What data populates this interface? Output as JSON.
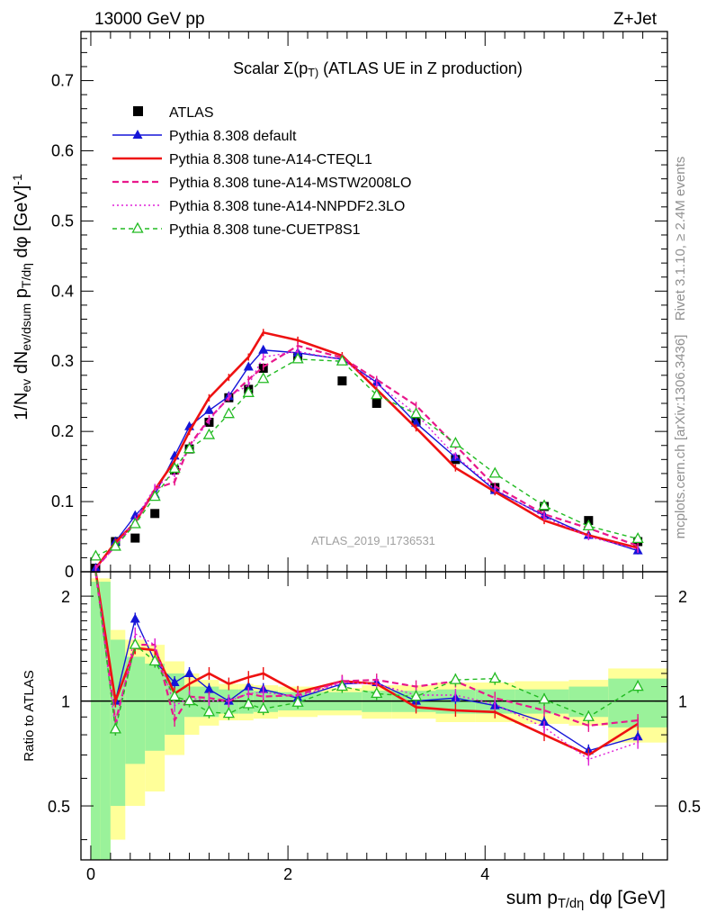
{
  "header": {
    "left": "13000 GeV pp",
    "right": "Z+Jet"
  },
  "side_labels": {
    "rivet": "Rivet 3.1.10, ≥ 2.4M events",
    "mcplots": "mcplots.cern.ch [arXiv:1306.3436]"
  },
  "watermark": "ATLAS_2019_I1736531",
  "chart_data": [
    {
      "type": "line",
      "title": "Scalar Σ(p_T) (ATLAS UE in Z production)",
      "ylabel": "1/N_ev dN_ev/dsum p_T/dη dφ [GeV]^-1",
      "ylim": [
        0,
        0.77
      ],
      "xlim": [
        -0.1,
        5.85
      ],
      "yticks": [
        0,
        0.1,
        0.2,
        0.3,
        0.4,
        0.5,
        0.6,
        0.7
      ],
      "ytick_labels": [
        "0",
        "0.1",
        "0.2",
        "0.3",
        "0.4",
        "0.5",
        "0.6",
        "0.7"
      ],
      "legend_position": "top-left",
      "x": [
        0.05,
        0.25,
        0.45,
        0.65,
        0.85,
        1.0,
        1.2,
        1.4,
        1.6,
        1.75,
        2.1,
        2.55,
        2.9,
        3.3,
        3.7,
        4.1,
        4.6,
        5.05,
        5.55
      ],
      "series": [
        {
          "name": "ATLAS",
          "color": "#000000",
          "style": "data",
          "values": [
            0.005,
            0.043,
            0.048,
            0.083,
            0.145,
            0.175,
            0.213,
            0.248,
            0.26,
            0.29,
            0.305,
            0.272,
            0.24,
            0.215,
            0.16,
            0.12,
            0.093,
            0.073,
            0.043
          ]
        },
        {
          "name": "Pythia 8.308 default",
          "color": "#1515d8",
          "style": "solid-marker",
          "values": [
            0.005,
            0.043,
            0.08,
            0.11,
            0.165,
            0.207,
            0.23,
            0.25,
            0.292,
            0.316,
            0.312,
            0.303,
            0.27,
            0.212,
            0.163,
            0.116,
            0.08,
            0.052,
            0.03
          ]
        },
        {
          "name": "Pythia 8.308 tune-A14-CTEQL1",
          "color": "#ee1111",
          "style": "solid-thick",
          "values": [
            0.005,
            0.042,
            0.07,
            0.117,
            0.158,
            0.2,
            0.248,
            0.277,
            0.306,
            0.341,
            0.33,
            0.308,
            0.26,
            0.205,
            0.148,
            0.114,
            0.073,
            0.052,
            0.034
          ]
        },
        {
          "name": "Pythia 8.308 tune-A14-MSTW2008LO",
          "color": "#e8188c",
          "style": "dashed",
          "values": [
            0.005,
            0.037,
            0.07,
            0.118,
            0.128,
            0.18,
            0.218,
            0.248,
            0.274,
            0.292,
            0.322,
            0.305,
            0.274,
            0.237,
            0.18,
            0.122,
            0.082,
            0.062,
            0.037
          ]
        },
        {
          "name": "Pythia 8.308 tune-A14-NNPDF2.3LO",
          "color": "#e020d8",
          "style": "dotted",
          "values": [
            0.005,
            0.036,
            0.075,
            0.12,
            0.14,
            0.178,
            0.215,
            0.25,
            0.266,
            0.306,
            0.314,
            0.302,
            0.268,
            0.225,
            0.165,
            0.118,
            0.078,
            0.05,
            0.032
          ]
        },
        {
          "name": "Pythia 8.308 tune-CUETP8S1",
          "color": "#22bb22",
          "style": "dashed-open",
          "values": [
            0.022,
            0.036,
            0.068,
            0.107,
            0.147,
            0.175,
            0.195,
            0.225,
            0.255,
            0.275,
            0.303,
            0.3,
            0.252,
            0.225,
            0.183,
            0.14,
            0.094,
            0.065,
            0.047
          ]
        }
      ]
    },
    {
      "type": "line",
      "xlabel": "sum p_T/dη dφ [GeV]",
      "ylabel": "Ratio to ATLAS",
      "ylim": [
        0.35,
        2.35
      ],
      "xlim": [
        -0.1,
        5.85
      ],
      "xticks": [
        0,
        2,
        4
      ],
      "xtick_labels": [
        "0",
        "2",
        "4"
      ],
      "yticks": [
        0.5,
        1,
        2
      ],
      "ytick_labels": [
        "0.5",
        "1",
        "2"
      ],
      "reference_line": 1,
      "band_edges": [
        0,
        0.1,
        0.2,
        0.35,
        0.55,
        0.75,
        0.95,
        1.1,
        1.3,
        1.5,
        1.65,
        1.9,
        2.3,
        2.75,
        3.05,
        3.5,
        3.9,
        4.3,
        4.85,
        5.25,
        5.85
      ],
      "band_green_half": [
        1.2,
        1.2,
        0.5,
        0.34,
        0.28,
        0.2,
        0.1,
        0.1,
        0.08,
        0.08,
        0.07,
        0.06,
        0.06,
        0.07,
        0.07,
        0.08,
        0.08,
        0.08,
        0.1,
        0.16,
        0.24
      ],
      "band_yellow_half": [
        1.25,
        1.25,
        0.6,
        0.5,
        0.45,
        0.3,
        0.2,
        0.15,
        0.12,
        0.12,
        0.11,
        0.1,
        0.09,
        0.11,
        0.11,
        0.13,
        0.13,
        0.14,
        0.15,
        0.24,
        0.4
      ],
      "series": [
        {
          "name": "Pythia 8.308 default",
          "color": "#1515d8",
          "values": [
            2.7,
            1.0,
            1.72,
            1.3,
            1.13,
            1.2,
            1.08,
            1.0,
            1.1,
            1.08,
            1.02,
            1.12,
            1.13,
            1.0,
            1.02,
            0.97,
            0.87,
            0.72,
            0.79
          ]
        },
        {
          "name": "Pythia 8.308 tune-A14-CTEQL1",
          "color": "#ee1111",
          "values": [
            2.7,
            1.0,
            1.42,
            1.4,
            1.05,
            1.12,
            1.2,
            1.12,
            1.17,
            1.2,
            1.06,
            1.14,
            1.12,
            0.96,
            0.94,
            0.93,
            0.8,
            0.7,
            0.86
          ]
        },
        {
          "name": "Pythia 8.308 tune-A14-MSTW2008LO",
          "color": "#e8188c",
          "values": [
            2.7,
            0.87,
            1.45,
            1.45,
            0.88,
            1.03,
            1.02,
            1.0,
            1.05,
            1.03,
            1.04,
            1.14,
            1.15,
            1.1,
            1.14,
            1.02,
            0.94,
            0.85,
            0.88
          ]
        },
        {
          "name": "Pythia 8.308 tune-A14-NNPDF2.3LO",
          "color": "#e020d8",
          "values": [
            2.7,
            0.83,
            1.56,
            1.45,
            0.97,
            1.02,
            1.0,
            1.0,
            1.05,
            1.06,
            1.03,
            1.13,
            1.12,
            1.04,
            1.04,
            0.98,
            0.84,
            0.68,
            0.76
          ]
        },
        {
          "name": "Pythia 8.308 tune-CUETP8S1",
          "color": "#22bb22",
          "values": [
            2.7,
            0.83,
            1.45,
            1.3,
            1.03,
            1.0,
            0.93,
            0.92,
            0.98,
            0.95,
            0.99,
            1.1,
            1.05,
            1.03,
            1.15,
            1.16,
            1.01,
            0.9,
            1.1
          ]
        }
      ]
    }
  ]
}
